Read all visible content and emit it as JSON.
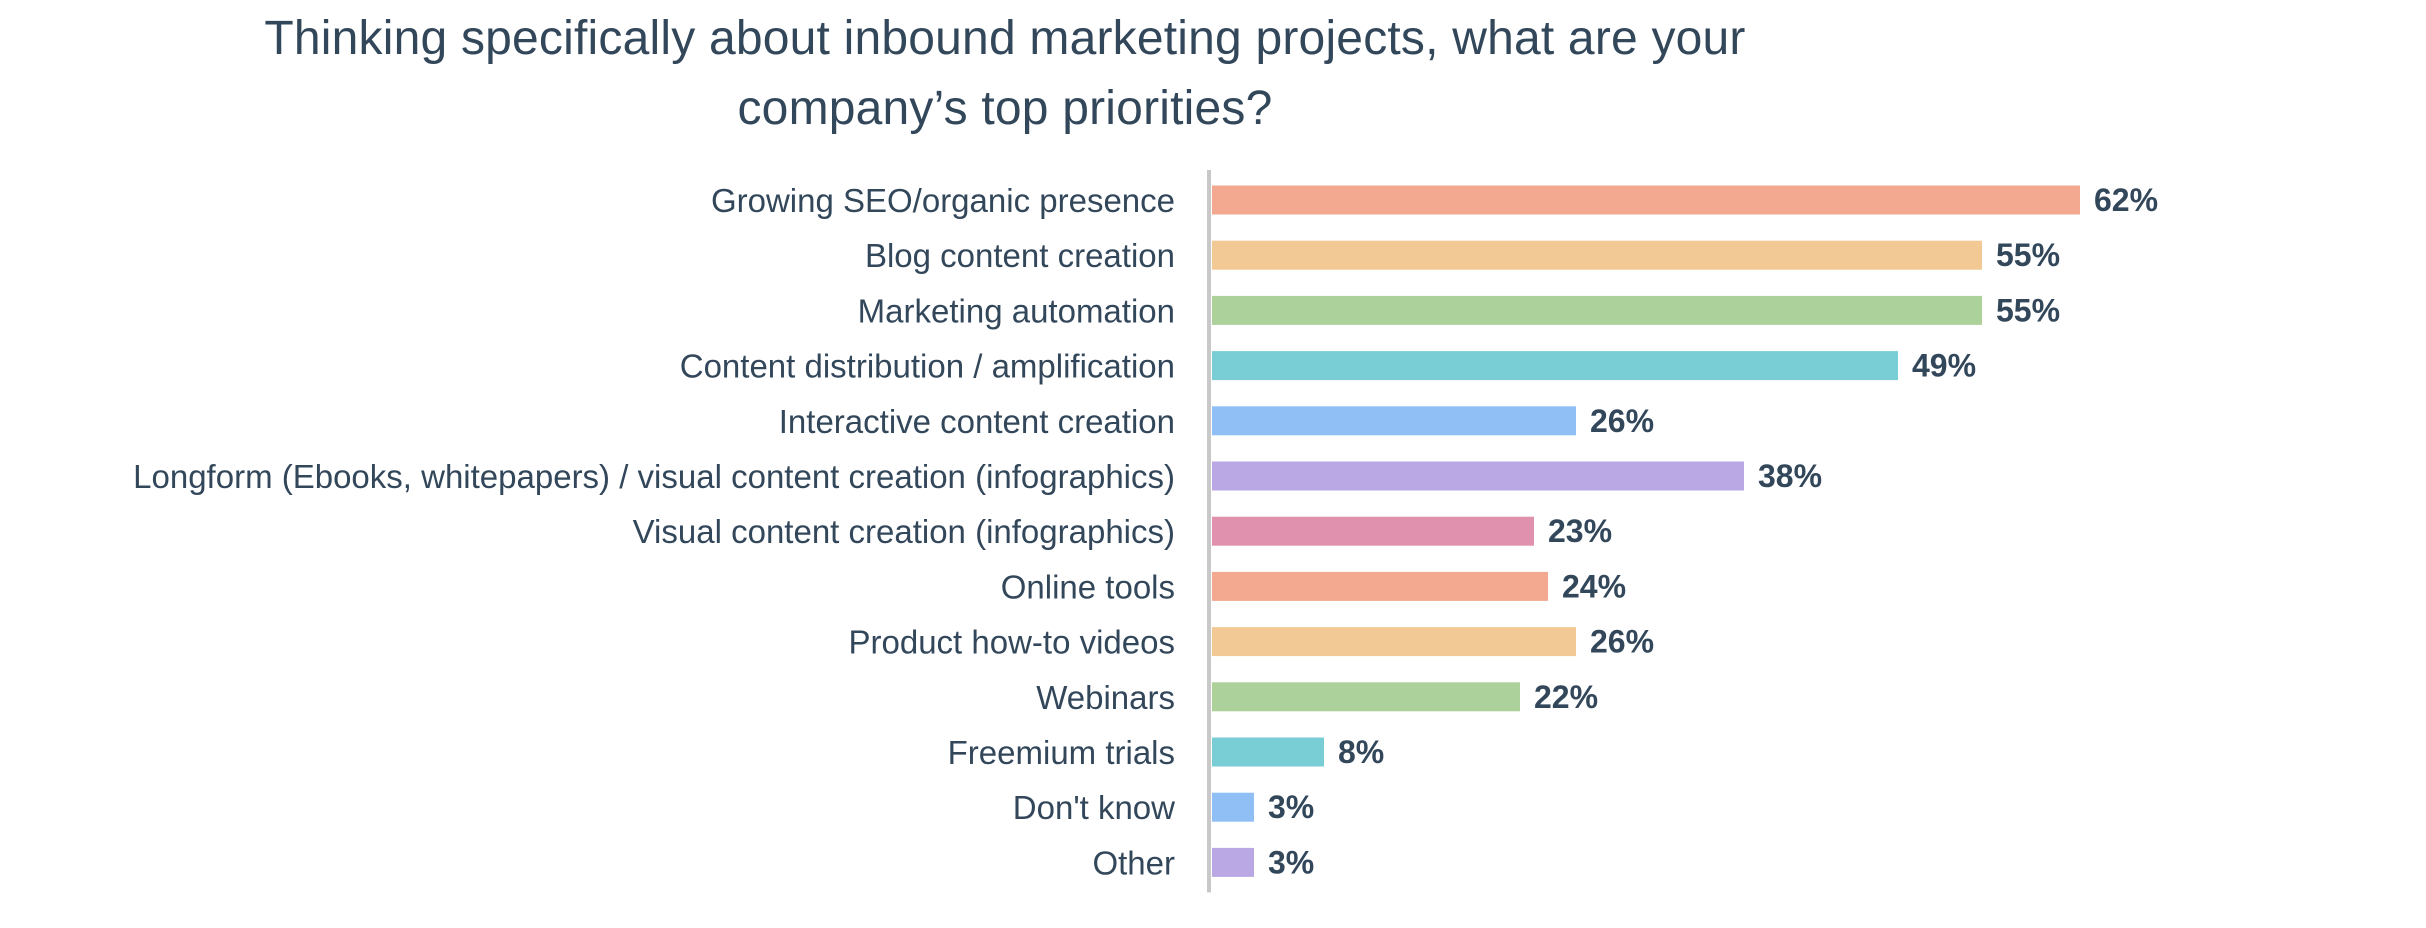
{
  "chart_data": {
    "type": "bar",
    "orientation": "horizontal",
    "title_lines": [
      "Thinking specifically about inbound marketing projects, what are your",
      "company’s top priorities?"
    ],
    "categories": [
      "Growing SEO/organic presence",
      "Blog content creation",
      "Marketing automation",
      "Content distribution / amplification",
      "Interactive content creation",
      "Longform (Ebooks, whitepapers) / visual content creation (infographics)",
      "Visual content creation (infographics)",
      "Online tools",
      "Product how-to videos",
      "Webinars",
      "Freemium trials",
      "Don't know",
      "Other"
    ],
    "values": [
      62,
      55,
      55,
      49,
      26,
      38,
      23,
      24,
      26,
      22,
      8,
      3,
      3
    ],
    "value_labels": [
      "62%",
      "55%",
      "55%",
      "49%",
      "26%",
      "38%",
      "23%",
      "24%",
      "26%",
      "22%",
      "8%",
      "3%",
      "3%"
    ],
    "colors": [
      "#f2a98f",
      "#f2c994",
      "#add19b",
      "#78ced4",
      "#90bff5",
      "#baa8e4",
      "#e091ae",
      "#f2a98f",
      "#f2c994",
      "#add19b",
      "#78ced4",
      "#90bff5",
      "#baa8e4"
    ],
    "axis_color": "#c8c8c8",
    "xlim": [
      0,
      70
    ],
    "grid": false,
    "legend": "none"
  }
}
